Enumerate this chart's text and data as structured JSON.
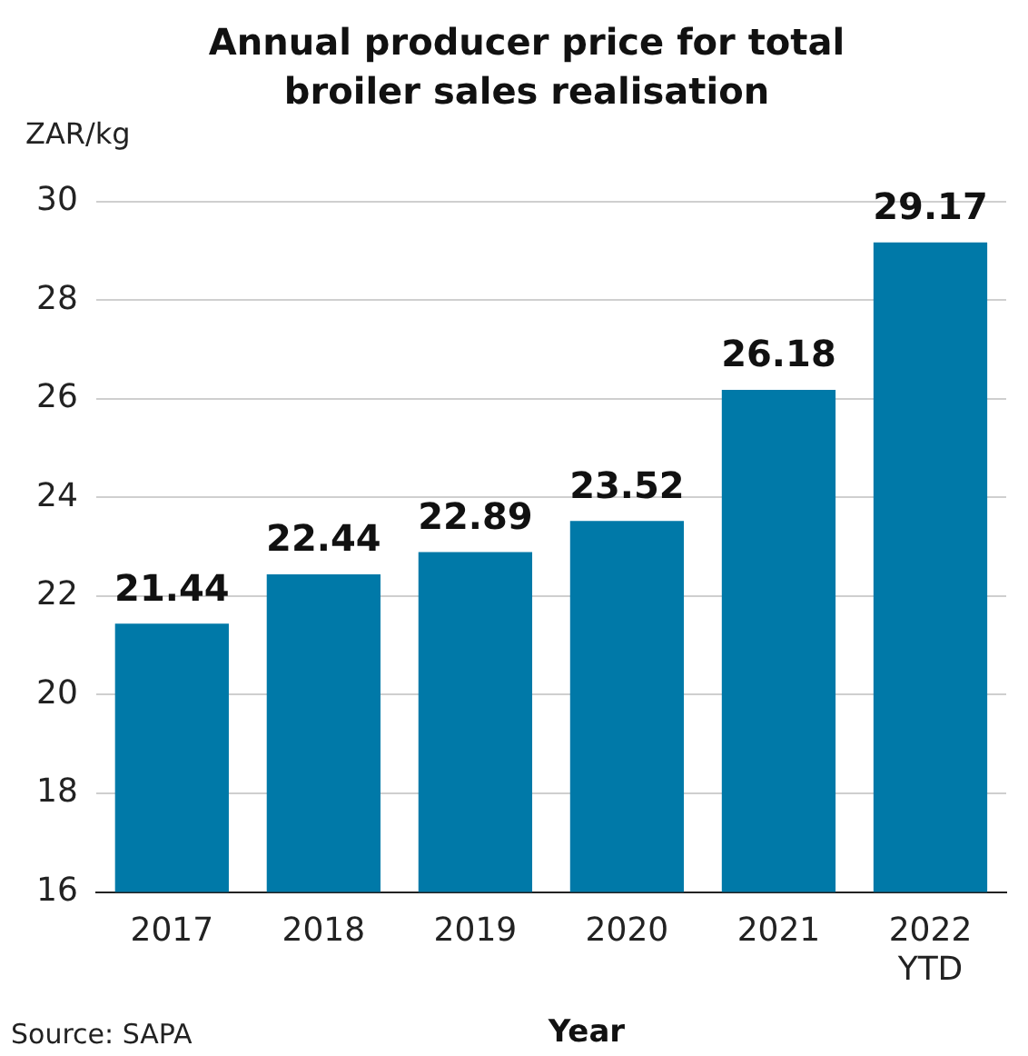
{
  "chart_data": {
    "type": "bar",
    "title": "Annual producer price for total broiler sales realisation",
    "ylabel": "ZAR/kg",
    "xlabel": "Year",
    "categories": [
      "2017",
      "2018",
      "2019",
      "2020",
      "2021",
      "2022 YTD"
    ],
    "values": [
      21.44,
      22.44,
      22.89,
      23.52,
      26.18,
      29.17
    ],
    "color": "#0079a8",
    "ylim": [
      16,
      30
    ],
    "yticks": [
      16,
      18,
      20,
      22,
      24,
      26,
      28,
      30
    ],
    "grid": "y",
    "data_labels": true,
    "legend": false,
    "annotations": [
      "Source: SAPA"
    ]
  }
}
